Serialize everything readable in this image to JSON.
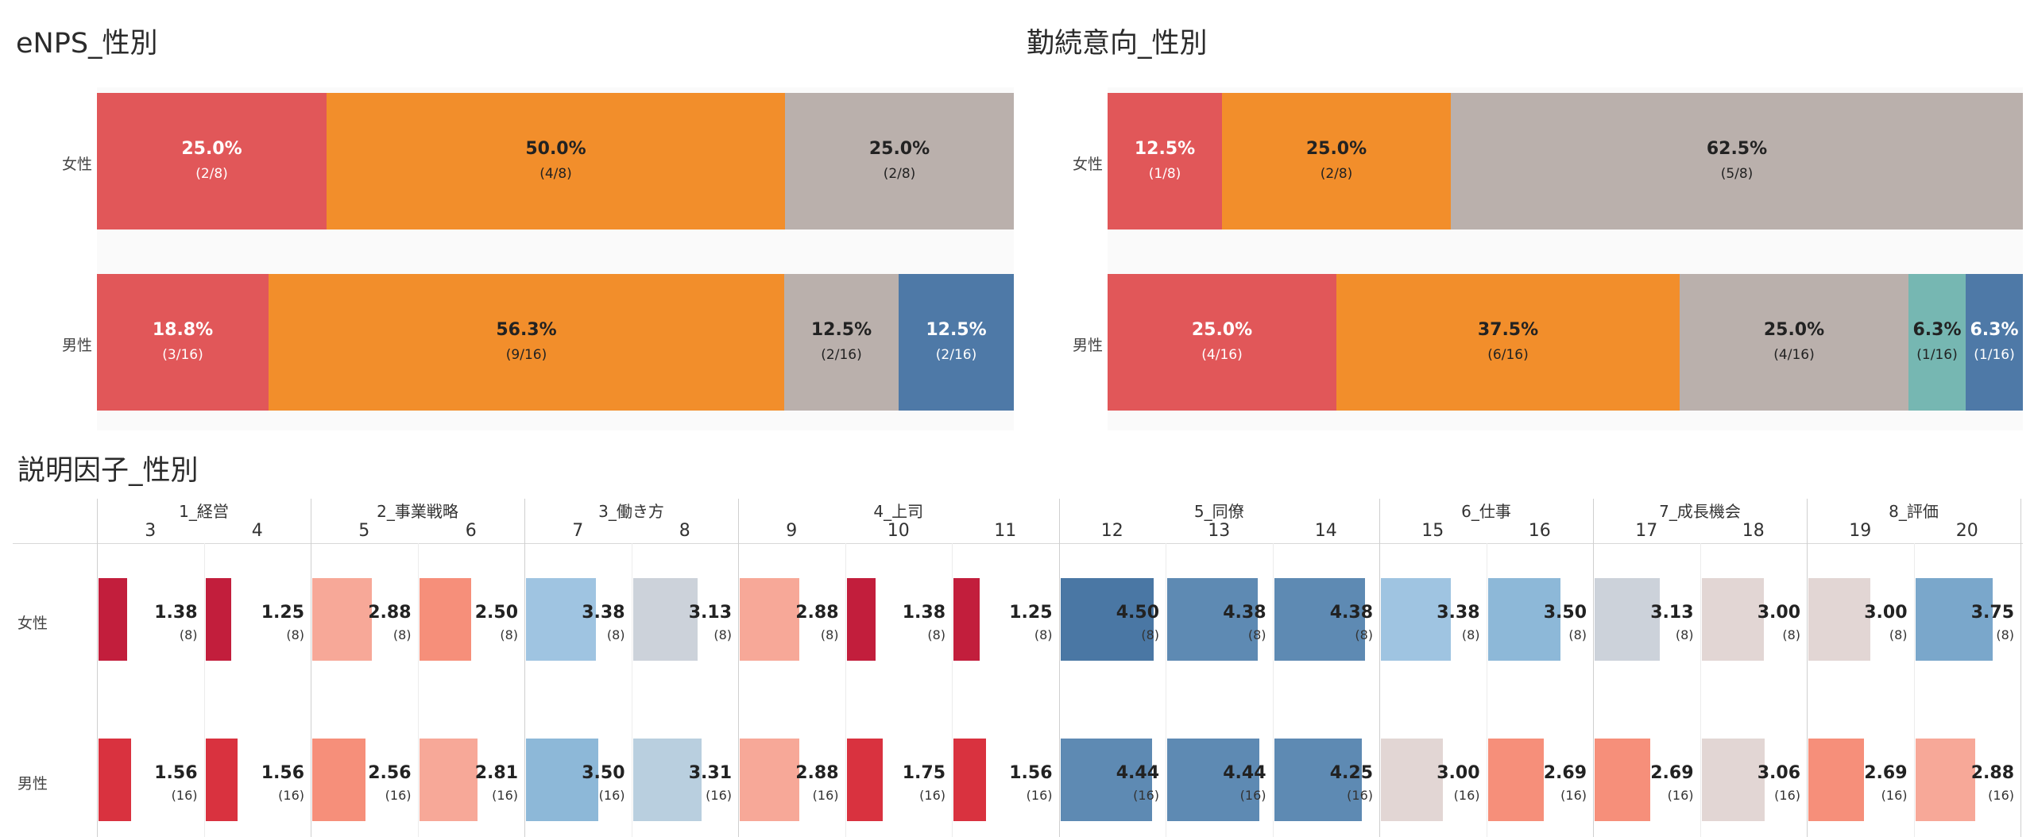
{
  "colors": {
    "red": "#e15759",
    "orange": "#f28e2b",
    "gray": "#bab0ac",
    "blue": "#4e79a7",
    "teal": "#76b7b2"
  },
  "charts": [
    {
      "title": "eNPS_性別",
      "rows": [
        {
          "label": "女性",
          "segments": [
            {
              "pct": "25.0%",
              "frac": "(2/8)",
              "value": 0.25,
              "color": "#e15759",
              "dark": false
            },
            {
              "pct": "50.0%",
              "frac": "(4/8)",
              "value": 0.5,
              "color": "#f28e2b",
              "dark": true
            },
            {
              "pct": "25.0%",
              "frac": "(2/8)",
              "value": 0.25,
              "color": "#bab0ac",
              "dark": true
            }
          ]
        },
        {
          "label": "男性",
          "segments": [
            {
              "pct": "18.8%",
              "frac": "(3/16)",
              "value": 0.1875,
              "color": "#e15759",
              "dark": false
            },
            {
              "pct": "56.3%",
              "frac": "(9/16)",
              "value": 0.5625,
              "color": "#f28e2b",
              "dark": true
            },
            {
              "pct": "12.5%",
              "frac": "(2/16)",
              "value": 0.125,
              "color": "#bab0ac",
              "dark": true
            },
            {
              "pct": "12.5%",
              "frac": "(2/16)",
              "value": 0.125,
              "color": "#4e79a7",
              "dark": false
            }
          ]
        }
      ]
    },
    {
      "title": "勤続意向_性別",
      "rows": [
        {
          "label": "女性",
          "segments": [
            {
              "pct": "12.5%",
              "frac": "(1/8)",
              "value": 0.125,
              "color": "#e15759",
              "dark": false
            },
            {
              "pct": "25.0%",
              "frac": "(2/8)",
              "value": 0.25,
              "color": "#f28e2b",
              "dark": true
            },
            {
              "pct": "62.5%",
              "frac": "(5/8)",
              "value": 0.625,
              "color": "#bab0ac",
              "dark": true
            }
          ]
        },
        {
          "label": "男性",
          "segments": [
            {
              "pct": "25.0%",
              "frac": "(4/16)",
              "value": 0.25,
              "color": "#e15759",
              "dark": false
            },
            {
              "pct": "37.5%",
              "frac": "(6/16)",
              "value": 0.375,
              "color": "#f28e2b",
              "dark": true
            },
            {
              "pct": "25.0%",
              "frac": "(4/16)",
              "value": 0.25,
              "color": "#bab0ac",
              "dark": true
            },
            {
              "pct": "6.3%",
              "frac": "(1/16)",
              "value": 0.0625,
              "color": "#76b7b2",
              "dark": true
            },
            {
              "pct": "6.3%",
              "frac": "(1/16)",
              "value": 0.0625,
              "color": "#4e79a7",
              "dark": false
            }
          ]
        }
      ]
    }
  ],
  "factor": {
    "title": "説明因子_性別",
    "row_labels": [
      "女性",
      "男性"
    ],
    "groups": [
      {
        "label": "1_経営",
        "cols": [
          "3",
          "4"
        ]
      },
      {
        "label": "2_事業戦略",
        "cols": [
          "5",
          "6"
        ]
      },
      {
        "label": "3_働き方",
        "cols": [
          "7",
          "8"
        ]
      },
      {
        "label": "4_上司",
        "cols": [
          "9",
          "10",
          "11"
        ]
      },
      {
        "label": "5_同僚",
        "cols": [
          "12",
          "13",
          "14"
        ]
      },
      {
        "label": "6_仕事",
        "cols": [
          "15",
          "16"
        ]
      },
      {
        "label": "7_成長機会",
        "cols": [
          "17",
          "18"
        ]
      },
      {
        "label": "8_評価",
        "cols": [
          "19",
          "20"
        ]
      }
    ],
    "female": {
      "values": [
        "1.38",
        "1.25",
        "2.88",
        "2.50",
        "3.38",
        "3.13",
        "2.88",
        "1.38",
        "1.25",
        "4.50",
        "4.38",
        "4.38",
        "3.38",
        "3.50",
        "3.13",
        "3.00",
        "3.00",
        "3.75"
      ],
      "n": "(8)"
    },
    "male": {
      "values": [
        "1.56",
        "1.56",
        "2.56",
        "2.81",
        "3.50",
        "3.31",
        "2.88",
        "1.75",
        "1.56",
        "4.44",
        "4.44",
        "4.25",
        "3.00",
        "2.69",
        "2.69",
        "3.06",
        "2.69",
        "2.88"
      ],
      "n": "(16)"
    },
    "scale_max": 5
  }
}
